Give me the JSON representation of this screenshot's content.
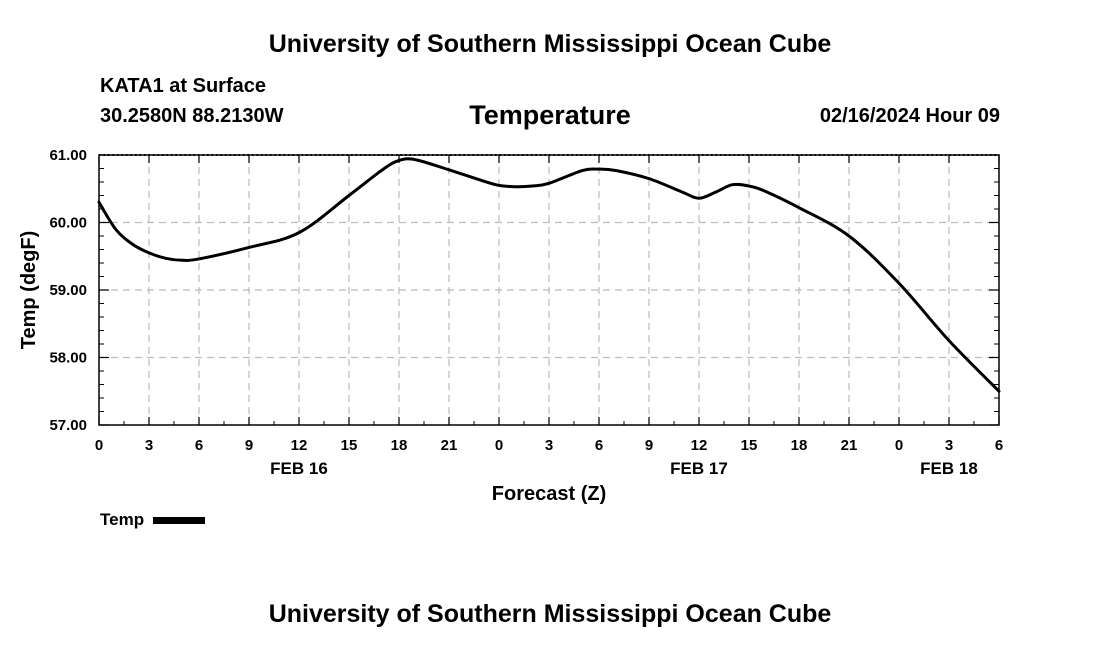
{
  "header": {
    "title": "University of Southern Mississippi Ocean Cube",
    "station": "KATA1 at Surface",
    "coords": "30.2580N  88.2130W",
    "variable": "Temperature",
    "datetime": "02/16/2024 Hour 09"
  },
  "footer": {
    "title": "University of Southern Mississippi Ocean Cube"
  },
  "legend": {
    "label": "Temp"
  },
  "colors": {
    "line": "#000000",
    "grid": "#bbbbbb",
    "background": "#ffffff"
  },
  "chart_data": {
    "type": "line",
    "title": "Temperature",
    "xlabel": "Forecast (Z)",
    "ylabel": "Temp (degF)",
    "xlim": [
      0,
      54
    ],
    "ylim": [
      57,
      61
    ],
    "grid": true,
    "x_ticks": [
      0,
      3,
      6,
      9,
      12,
      15,
      18,
      21,
      24,
      27,
      30,
      33,
      36,
      39,
      42,
      45,
      48,
      51,
      54
    ],
    "x_tick_labels": [
      "0",
      "3",
      "6",
      "9",
      "12",
      "15",
      "18",
      "21",
      "0",
      "3",
      "6",
      "9",
      "12",
      "15",
      "18",
      "21",
      "0",
      "3",
      "6"
    ],
    "y_ticks": [
      57,
      58,
      59,
      60,
      61
    ],
    "y_tick_labels": [
      "57.00",
      "58.00",
      "59.00",
      "60.00",
      "61.00"
    ],
    "date_labels": [
      {
        "x": 12,
        "label": "FEB 16"
      },
      {
        "x": 36,
        "label": "FEB 17"
      },
      {
        "x": 51,
        "label": "FEB 18"
      }
    ],
    "series": [
      {
        "name": "Temp",
        "x": [
          0,
          1,
          2,
          3,
          4,
          5,
          6,
          9,
          12,
          15,
          17,
          18,
          19,
          21,
          23,
          24,
          25,
          26,
          27,
          29,
          30,
          31,
          33,
          35,
          36,
          37,
          38,
          39,
          40,
          42,
          45,
          48,
          51,
          54
        ],
        "values": [
          60.3,
          59.9,
          59.68,
          59.55,
          59.47,
          59.44,
          59.46,
          59.63,
          59.85,
          60.4,
          60.78,
          60.92,
          60.93,
          60.78,
          60.62,
          60.55,
          60.53,
          60.54,
          60.58,
          60.77,
          60.79,
          60.77,
          60.65,
          60.45,
          60.36,
          60.45,
          60.56,
          60.54,
          60.46,
          60.22,
          59.8,
          59.1,
          58.25,
          57.5
        ]
      }
    ]
  }
}
